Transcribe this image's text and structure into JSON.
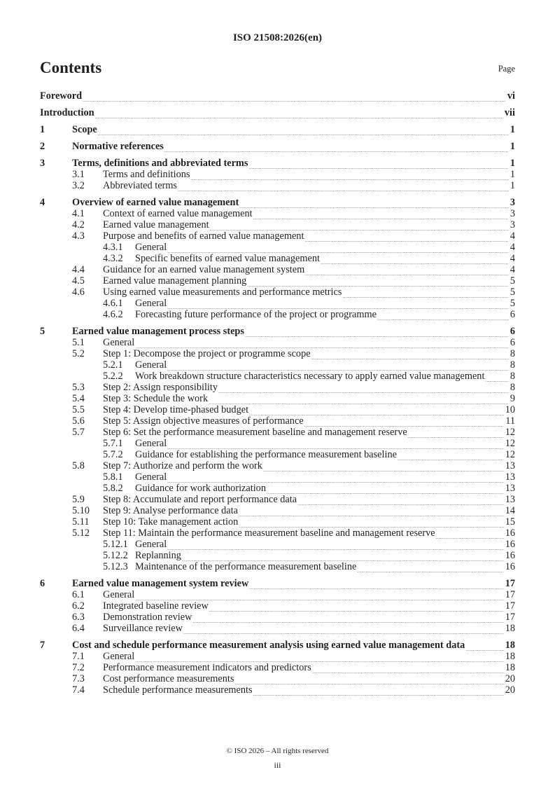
{
  "header": "ISO 21508:2026(en)",
  "heading": "Contents",
  "page_label": "Page",
  "entries": [
    {
      "level": 1,
      "num": "",
      "title": "Foreword",
      "page": "vi"
    },
    {
      "level": 1,
      "num": "",
      "title": "Introduction",
      "page": "vii"
    },
    {
      "level": 1,
      "num": "1",
      "title": "Scope",
      "page": "1"
    },
    {
      "level": 1,
      "num": "2",
      "title": "Normative references",
      "page": "1"
    },
    {
      "level": 1,
      "num": "3",
      "title": "Terms, definitions and abbreviated terms",
      "page": "1"
    },
    {
      "level": 2,
      "num": "3.1",
      "title": "Terms and definitions",
      "page": "1"
    },
    {
      "level": 2,
      "num": "3.2",
      "title": "Abbreviated terms",
      "page": "1"
    },
    {
      "level": 1,
      "num": "4",
      "title": "Overview of earned value management",
      "page": "3"
    },
    {
      "level": 2,
      "num": "4.1",
      "title": "Context of earned value management",
      "page": "3"
    },
    {
      "level": 2,
      "num": "4.2",
      "title": "Earned value management",
      "page": "3"
    },
    {
      "level": 2,
      "num": "4.3",
      "title": "Purpose and benefits of earned value management",
      "page": "4"
    },
    {
      "level": 3,
      "num": "4.3.1",
      "title": "General",
      "page": "4"
    },
    {
      "level": 3,
      "num": "4.3.2",
      "title": "Specific benefits of earned value management",
      "page": "4"
    },
    {
      "level": 2,
      "num": "4.4",
      "title": "Guidance for an earned value management system",
      "page": "4"
    },
    {
      "level": 2,
      "num": "4.5",
      "title": "Earned value management planning",
      "page": "5"
    },
    {
      "level": 2,
      "num": "4.6",
      "title": "Using earned value measurements and performance metrics",
      "page": "5"
    },
    {
      "level": 3,
      "num": "4.6.1",
      "title": "General",
      "page": "5"
    },
    {
      "level": 3,
      "num": "4.6.2",
      "title": "Forecasting future performance of the project or programme",
      "page": "6"
    },
    {
      "level": 1,
      "num": "5",
      "title": "Earned value management process steps",
      "page": "6"
    },
    {
      "level": 2,
      "num": "5.1",
      "title": "General",
      "page": "6"
    },
    {
      "level": 2,
      "num": "5.2",
      "title": "Step 1: Decompose the project or programme scope",
      "page": "8"
    },
    {
      "level": 3,
      "num": "5.2.1",
      "title": "General",
      "page": "8"
    },
    {
      "level": 3,
      "num": "5.2.2",
      "title": "Work breakdown structure characteristics necessary to apply earned value management",
      "page": "8",
      "wrap": true
    },
    {
      "level": 2,
      "num": "5.3",
      "title": "Step 2: Assign responsibility",
      "page": "8"
    },
    {
      "level": 2,
      "num": "5.4",
      "title": "Step 3: Schedule the work",
      "page": "9"
    },
    {
      "level": 2,
      "num": "5.5",
      "title": "Step 4: Develop time-phased budget",
      "page": "10"
    },
    {
      "level": 2,
      "num": "5.6",
      "title": "Step 5: Assign objective measures of performance",
      "page": "11"
    },
    {
      "level": 2,
      "num": "5.7",
      "title": "Step 6: Set the performance measurement baseline and management reserve",
      "page": "12"
    },
    {
      "level": 3,
      "num": "5.7.1",
      "title": "General",
      "page": "12"
    },
    {
      "level": 3,
      "num": "5.7.2",
      "title": "Guidance for establishing the performance measurement baseline",
      "page": "12"
    },
    {
      "level": 2,
      "num": "5.8",
      "title": "Step 7: Authorize and perform the work",
      "page": "13"
    },
    {
      "level": 3,
      "num": "5.8.1",
      "title": "General",
      "page": "13"
    },
    {
      "level": 3,
      "num": "5.8.2",
      "title": "Guidance for work authorization",
      "page": "13"
    },
    {
      "level": 2,
      "num": "5.9",
      "title": "Step 8: Accumulate and report performance data",
      "page": "13"
    },
    {
      "level": 2,
      "num": "5.10",
      "title": "Step 9: Analyse performance data",
      "page": "14"
    },
    {
      "level": 2,
      "num": "5.11",
      "title": "Step 10: Take management action",
      "page": "15"
    },
    {
      "level": 2,
      "num": "5.12",
      "title": "Step 11: Maintain the performance measurement baseline and management reserve",
      "page": "16"
    },
    {
      "level": 3,
      "num": "5.12.1",
      "title": "General",
      "page": "16"
    },
    {
      "level": 3,
      "num": "5.12.2",
      "title": "Replanning",
      "page": "16"
    },
    {
      "level": 3,
      "num": "5.12.3",
      "title": "Maintenance of the performance measurement baseline",
      "page": "16"
    },
    {
      "level": 1,
      "num": "6",
      "title": "Earned value management system review",
      "page": "17"
    },
    {
      "level": 2,
      "num": "6.1",
      "title": "General",
      "page": "17"
    },
    {
      "level": 2,
      "num": "6.2",
      "title": "Integrated baseline review",
      "page": "17"
    },
    {
      "level": 2,
      "num": "6.3",
      "title": "Demonstration review",
      "page": "17"
    },
    {
      "level": 2,
      "num": "6.4",
      "title": "Surveillance review",
      "page": "18"
    },
    {
      "level": 1,
      "num": "7",
      "title": "Cost and schedule performance measurement analysis using earned value management data",
      "page": "18",
      "wrap": true
    },
    {
      "level": 2,
      "num": "7.1",
      "title": "General",
      "page": "18"
    },
    {
      "level": 2,
      "num": "7.2",
      "title": "Performance measurement indicators and predictors",
      "page": "18"
    },
    {
      "level": 2,
      "num": "7.3",
      "title": "Cost performance measurements",
      "page": "20"
    },
    {
      "level": 2,
      "num": "7.4",
      "title": "Schedule performance measurements",
      "page": "20"
    }
  ],
  "footer": {
    "copyright": "© ISO 2026 – All rights reserved",
    "page_number": "iii"
  }
}
